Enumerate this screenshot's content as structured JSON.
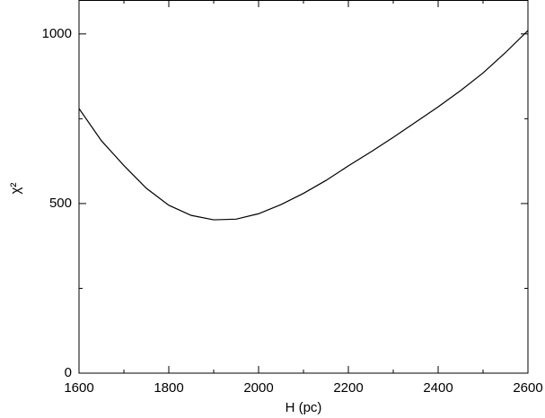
{
  "chart_data": {
    "type": "line",
    "x_label": "H (pc)",
    "y_label": "χ²",
    "x": [
      1600,
      1650,
      1700,
      1750,
      1800,
      1850,
      1900,
      1950,
      2000,
      2050,
      2100,
      2150,
      2200,
      2250,
      2300,
      2350,
      2400,
      2450,
      2500,
      2550,
      2600
    ],
    "series": [
      {
        "name": "chi2",
        "color": "#000000",
        "values": [
          780,
          685,
          612,
          545,
          495,
          465,
          452,
          454,
          470,
          497,
          530,
          568,
          611,
          652,
          695,
          740,
          785,
          833,
          885,
          945,
          1010
        ]
      }
    ],
    "xlim": [
      1600,
      2600
    ],
    "xticks": [
      1600,
      1800,
      2000,
      2200,
      2400,
      2600
    ],
    "xminorticks": [
      1700,
      1900,
      2100,
      2300,
      2500
    ],
    "ylim": [
      0,
      1100
    ],
    "yticks": [
      0,
      500,
      1000
    ],
    "yminorticks": [
      250,
      750
    ],
    "grid": false
  }
}
